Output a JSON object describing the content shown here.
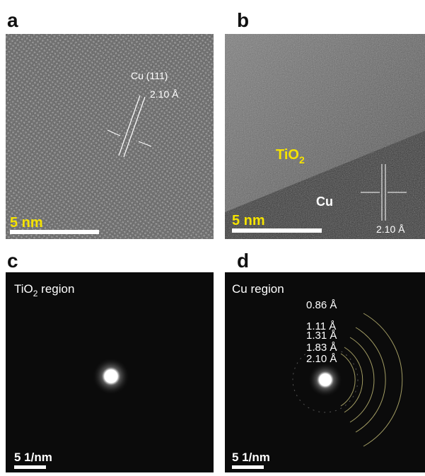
{
  "panels": [
    {
      "letter": "a",
      "annotations": [
        "Cu (111)",
        "2.10 Å"
      ],
      "scale_bar": "5 nm"
    },
    {
      "letter": "b",
      "material": {
        "main": "TiO",
        "sub": "2"
      },
      "region": "Cu",
      "spacing": "2.10 Å",
      "scale_bar": "5 nm"
    },
    {
      "letter": "c",
      "region": {
        "main": "TiO",
        "sub": "2",
        "rest": " region"
      },
      "scale_bar": "5 1/nm"
    },
    {
      "letter": "d",
      "region": "Cu region",
      "rings": [
        "0.86 Å",
        "1.11 Å",
        "1.31 Å",
        "1.83 Å",
        "2.10 Å"
      ],
      "scale_bar": "5 1/nm"
    }
  ]
}
